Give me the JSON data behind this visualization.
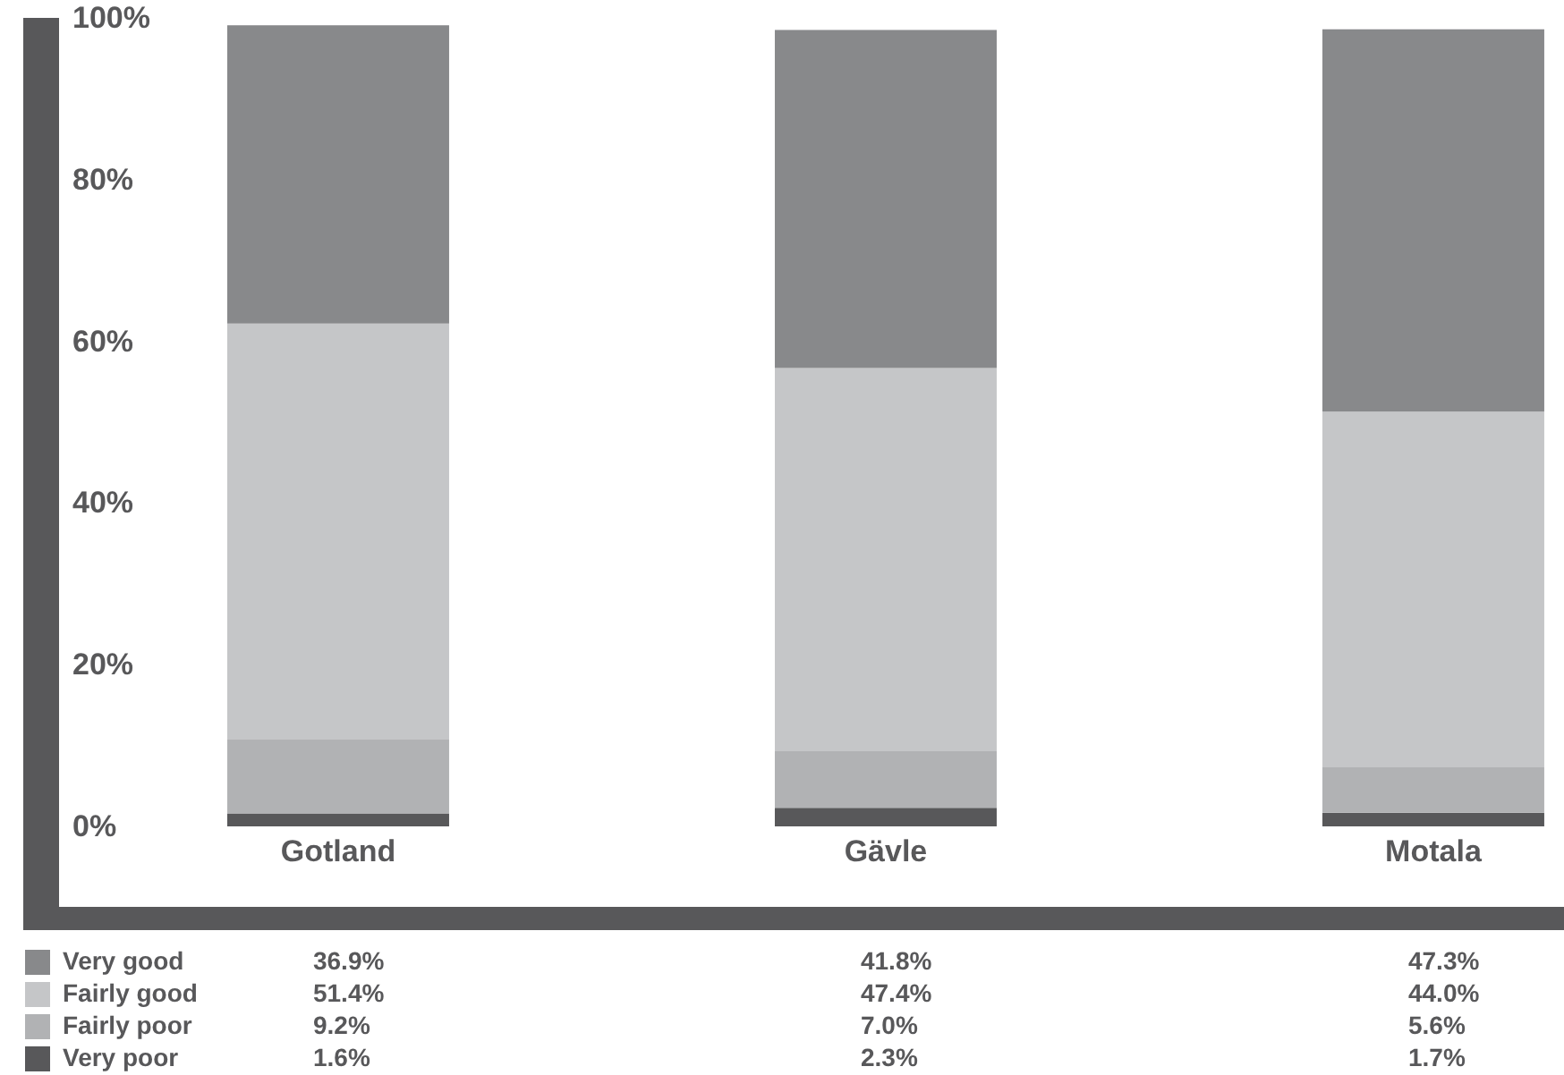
{
  "chart_data": {
    "type": "bar",
    "stacked": true,
    "categories": [
      "Gotland",
      "Gävle",
      "Motala"
    ],
    "series": [
      {
        "name": "Very poor",
        "color": "#58585a",
        "values": [
          1.6,
          2.3,
          1.7
        ],
        "value_labels": [
          "1.6%",
          "2.3%",
          "1.7%"
        ]
      },
      {
        "name": "Fairly poor",
        "color": "#b1b2b4",
        "values": [
          9.2,
          7.0,
          5.6
        ],
        "value_labels": [
          "9.2%",
          "7.0%",
          "5.6%"
        ]
      },
      {
        "name": "Fairly good",
        "color": "#c5c6c8",
        "values": [
          51.4,
          47.4,
          44.0
        ],
        "value_labels": [
          "51.4%",
          "47.4%",
          "44.0%"
        ]
      },
      {
        "name": "Very good",
        "color": "#88898b",
        "values": [
          36.9,
          41.8,
          47.3
        ],
        "value_labels": [
          "36.9%",
          "41.8%",
          "47.3%"
        ]
      }
    ],
    "ylim": [
      0,
      100
    ],
    "yticks": [
      {
        "value": 0,
        "label": "0%"
      },
      {
        "value": 20,
        "label": "20%"
      },
      {
        "value": 40,
        "label": "40%"
      },
      {
        "value": 60,
        "label": "60%"
      },
      {
        "value": 80,
        "label": "80%"
      },
      {
        "value": 100,
        "label": "100%"
      }
    ],
    "legend": "bottom left"
  }
}
